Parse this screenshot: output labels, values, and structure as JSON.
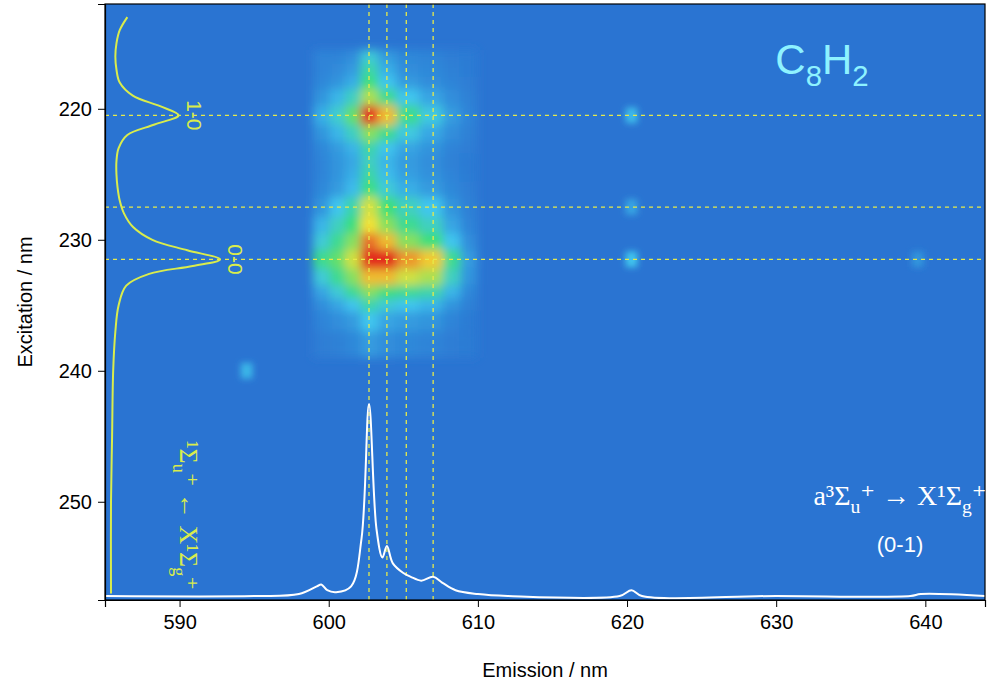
{
  "chart_data": {
    "type": "heatmap",
    "title": "C8H2",
    "x_label": "Emission / nm",
    "y_label": "Excitation / nm",
    "xlim": [
      585,
      644
    ],
    "xticks": [
      590,
      600,
      610,
      620,
      630,
      640
    ],
    "ylim": [
      212,
      257.5
    ],
    "yticks": [
      220,
      230,
      240,
      250
    ],
    "color_range": [
      0,
      1
    ],
    "cells": {
      "x": [
        599.5,
        600.6,
        601.6,
        602.7,
        603.9,
        605.2,
        607.0,
        608.3,
        609.4
      ],
      "y": [
        216,
        217,
        218,
        219,
        220.5,
        222,
        223,
        224,
        225,
        226,
        227.5,
        229,
        230,
        231.5,
        233,
        234,
        235,
        236,
        238
      ],
      "values": [
        [
          0.05,
          0.05,
          0.08,
          0.3,
          0.12,
          0.06,
          0.05,
          0.03,
          0.02
        ],
        [
          0.05,
          0.07,
          0.12,
          0.4,
          0.18,
          0.08,
          0.06,
          0.04,
          0.02
        ],
        [
          0.06,
          0.1,
          0.18,
          0.5,
          0.25,
          0.12,
          0.08,
          0.05,
          0.03
        ],
        [
          0.1,
          0.2,
          0.35,
          0.65,
          0.45,
          0.25,
          0.15,
          0.08,
          0.04
        ],
        [
          0.18,
          0.32,
          0.55,
          1.0,
          0.8,
          0.45,
          0.28,
          0.12,
          0.05
        ],
        [
          0.1,
          0.2,
          0.35,
          0.6,
          0.45,
          0.28,
          0.16,
          0.08,
          0.04
        ],
        [
          0.06,
          0.12,
          0.2,
          0.4,
          0.25,
          0.15,
          0.1,
          0.05,
          0.03
        ],
        [
          0.05,
          0.1,
          0.16,
          0.35,
          0.2,
          0.12,
          0.08,
          0.04,
          0.02
        ],
        [
          0.05,
          0.1,
          0.18,
          0.4,
          0.22,
          0.13,
          0.09,
          0.05,
          0.02
        ],
        [
          0.06,
          0.12,
          0.22,
          0.48,
          0.3,
          0.18,
          0.12,
          0.06,
          0.03
        ],
        [
          0.1,
          0.25,
          0.4,
          0.7,
          0.5,
          0.35,
          0.25,
          0.1,
          0.04
        ],
        [
          0.2,
          0.35,
          0.5,
          0.75,
          0.6,
          0.45,
          0.35,
          0.15,
          0.05
        ],
        [
          0.3,
          0.45,
          0.6,
          0.9,
          0.8,
          0.6,
          0.5,
          0.25,
          0.08
        ],
        [
          0.45,
          0.55,
          0.7,
          1.0,
          1.0,
          0.85,
          0.78,
          0.45,
          0.12
        ],
        [
          0.3,
          0.45,
          0.6,
          0.8,
          0.8,
          0.7,
          0.65,
          0.35,
          0.1
        ],
        [
          0.15,
          0.3,
          0.45,
          0.6,
          0.5,
          0.45,
          0.4,
          0.2,
          0.06
        ],
        [
          0.08,
          0.15,
          0.25,
          0.4,
          0.3,
          0.25,
          0.2,
          0.1,
          0.04
        ],
        [
          0.05,
          0.08,
          0.12,
          0.25,
          0.15,
          0.12,
          0.1,
          0.05,
          0.02
        ],
        [
          0.03,
          0.04,
          0.06,
          0.12,
          0.08,
          0.06,
          0.05,
          0.03,
          0.02
        ]
      ]
    },
    "spots": {
      "x": [
        620.3,
        620.3,
        620.3,
        594.5,
        639.5
      ],
      "y": [
        220.5,
        227.5,
        231.5,
        240.0,
        231.5
      ],
      "values": [
        0.22,
        0.15,
        0.25,
        0.2,
        0.1
      ]
    },
    "x_lines": [
      602.7,
      603.9,
      605.2,
      607.0
    ],
    "y_lines": [
      220.5,
      227.5,
      231.5
    ],
    "excitation_spectrum": {
      "color": "#d9ec4c",
      "x": [
        213,
        214,
        215,
        216,
        217,
        218,
        219,
        219.8,
        220.5,
        221.2,
        222,
        223,
        224,
        225,
        226,
        227,
        228,
        229,
        230,
        230.8,
        231.5,
        232,
        232.6,
        233.5,
        235,
        237,
        240,
        245,
        250,
        257
      ],
      "values": [
        0.15,
        0.08,
        0.05,
        0.04,
        0.05,
        0.08,
        0.2,
        0.45,
        0.62,
        0.4,
        0.15,
        0.07,
        0.05,
        0.05,
        0.06,
        0.08,
        0.12,
        0.2,
        0.38,
        0.7,
        1.0,
        0.75,
        0.35,
        0.14,
        0.07,
        0.04,
        0.02,
        0.01,
        0.0,
        0.0
      ]
    },
    "emission_spectrum": {
      "color": "#ffffff",
      "x": [
        585,
        595,
        598,
        599.2,
        599.5,
        599.9,
        600.5,
        601.5,
        602.2,
        602.7,
        603.2,
        603.6,
        603.9,
        604.3,
        605.0,
        605.5,
        606.2,
        607.0,
        607.6,
        608.5,
        610,
        612,
        619.5,
        620.3,
        621,
        630,
        639,
        639.7,
        644
      ],
      "values": [
        0.0,
        0.0,
        0.01,
        0.05,
        0.06,
        0.03,
        0.02,
        0.05,
        0.3,
        1.0,
        0.35,
        0.2,
        0.26,
        0.17,
        0.12,
        0.1,
        0.08,
        0.1,
        0.07,
        0.03,
        0.01,
        0.0,
        0.0,
        0.03,
        0.0,
        0.0,
        0.0,
        0.01,
        0.0
      ]
    },
    "annotations": [
      {
        "text": "1-0",
        "y": 220.5
      },
      {
        "text": "0-0",
        "y": 231.5
      }
    ],
    "excitation_transition": "¹Σu⁺ ← X¹Σg⁺",
    "emission_transition": "a³Σu⁺ → X¹Σg⁺",
    "emission_band": "(0-1)"
  }
}
